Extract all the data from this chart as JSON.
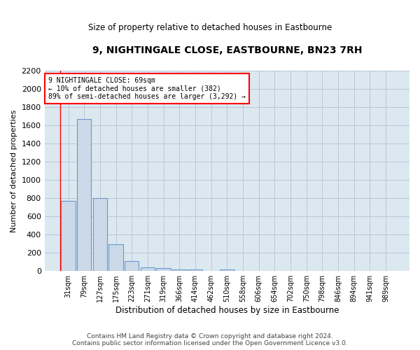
{
  "title": "9, NIGHTINGALE CLOSE, EASTBOURNE, BN23 7RH",
  "subtitle": "Size of property relative to detached houses in Eastbourne",
  "xlabel": "Distribution of detached houses by size in Eastbourne",
  "ylabel": "Number of detached properties",
  "categories": [
    "31sqm",
    "79sqm",
    "127sqm",
    "175sqm",
    "223sqm",
    "271sqm",
    "319sqm",
    "366sqm",
    "414sqm",
    "462sqm",
    "510sqm",
    "558sqm",
    "606sqm",
    "654sqm",
    "702sqm",
    "750sqm",
    "798sqm",
    "846sqm",
    "894sqm",
    "941sqm",
    "989sqm"
  ],
  "values": [
    770,
    1670,
    800,
    295,
    110,
    40,
    30,
    20,
    20,
    0,
    20,
    0,
    0,
    0,
    0,
    0,
    0,
    0,
    0,
    0,
    0
  ],
  "bar_color": "#ccd9e8",
  "bar_edge_color": "#6699cc",
  "grid_color": "#b8c8d8",
  "plot_bg_color": "#dce8f0",
  "background_color": "#ffffff",
  "annotation_line1": "9 NIGHTINGALE CLOSE: 69sqm",
  "annotation_line2": "← 10% of detached houses are smaller (382)",
  "annotation_line3": "89% of semi-detached houses are larger (3,292) →",
  "ylim": [
    0,
    2200
  ],
  "yticks": [
    0,
    200,
    400,
    600,
    800,
    1000,
    1200,
    1400,
    1600,
    1800,
    2000,
    2200
  ],
  "footer": "Contains HM Land Registry data © Crown copyright and database right 2024.\nContains public sector information licensed under the Open Government Licence v3.0."
}
